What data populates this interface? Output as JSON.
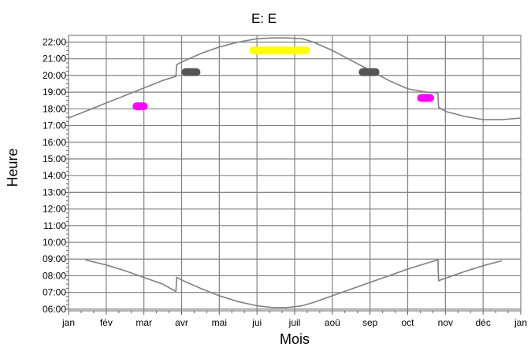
{
  "chart_data": {
    "type": "line",
    "title": "E: E",
    "xlabel": "Mois",
    "ylabel": "Heure",
    "x_tick_labels": [
      "jan",
      "fév",
      "mar",
      "avr",
      "mai",
      "jui",
      "juil",
      "aoû",
      "sep",
      "oct",
      "nov",
      "déc",
      "jan"
    ],
    "y_tick_labels": [
      "06:00",
      "07:00",
      "08:00",
      "09:00",
      "10:00",
      "11:00",
      "12:00",
      "13:00",
      "14:00",
      "15:00",
      "16:00",
      "17:00",
      "18:00",
      "19:00",
      "20:00",
      "21:00",
      "22:00"
    ],
    "xlim": [
      0,
      12
    ],
    "ylim": [
      5.9,
      22.4
    ],
    "grid": true,
    "series": [
      {
        "values_x": [
          0,
          0.5,
          1,
          1.5,
          2,
          2.5,
          2.85,
          2.87,
          3,
          3.5,
          4,
          4.5,
          5,
          5.4,
          5.8,
          6.2,
          6.5,
          7,
          7.5,
          8,
          8.5,
          9,
          9.5,
          9.8,
          9.82,
          10,
          10.5,
          11,
          11.5,
          12
        ],
        "values_y": [
          17.45,
          17.9,
          18.35,
          18.8,
          19.25,
          19.7,
          19.95,
          20.65,
          20.8,
          21.3,
          21.7,
          22.0,
          22.2,
          22.25,
          22.25,
          22.2,
          22.0,
          21.5,
          20.9,
          20.3,
          19.7,
          19.2,
          19.0,
          18.95,
          18.1,
          17.85,
          17.55,
          17.35,
          17.35,
          17.45
        ],
        "color": "#808080"
      },
      {
        "values_x": [
          0.45,
          1,
          1.5,
          2,
          2.5,
          2.85,
          2.87,
          3,
          3.5,
          4,
          4.5,
          5,
          5.4,
          5.8,
          6.2,
          6.5,
          7,
          7.5,
          8,
          8.5,
          9,
          9.5,
          9.8,
          9.82,
          10,
          10.5,
          11,
          11.5
        ],
        "values_y": [
          8.95,
          8.65,
          8.3,
          7.9,
          7.5,
          7.05,
          7.9,
          7.75,
          7.25,
          6.8,
          6.45,
          6.2,
          6.1,
          6.1,
          6.2,
          6.4,
          6.8,
          7.2,
          7.6,
          8.0,
          8.4,
          8.75,
          8.95,
          7.7,
          7.85,
          8.25,
          8.6,
          8.9
        ],
        "color": "#808080"
      }
    ],
    "markers": [
      {
        "x0": 1.7,
        "x1": 2.1,
        "y": 18.15,
        "color": "#ff00ff"
      },
      {
        "x0": 3.0,
        "x1": 3.5,
        "y": 20.2,
        "color": "#555555"
      },
      {
        "x0": 4.8,
        "x1": 6.4,
        "y": 21.5,
        "color": "#ffff00"
      },
      {
        "x0": 7.7,
        "x1": 8.25,
        "y": 20.2,
        "color": "#555555"
      },
      {
        "x0": 9.25,
        "x1": 9.7,
        "y": 18.65,
        "color": "#ff00ff"
      }
    ]
  }
}
